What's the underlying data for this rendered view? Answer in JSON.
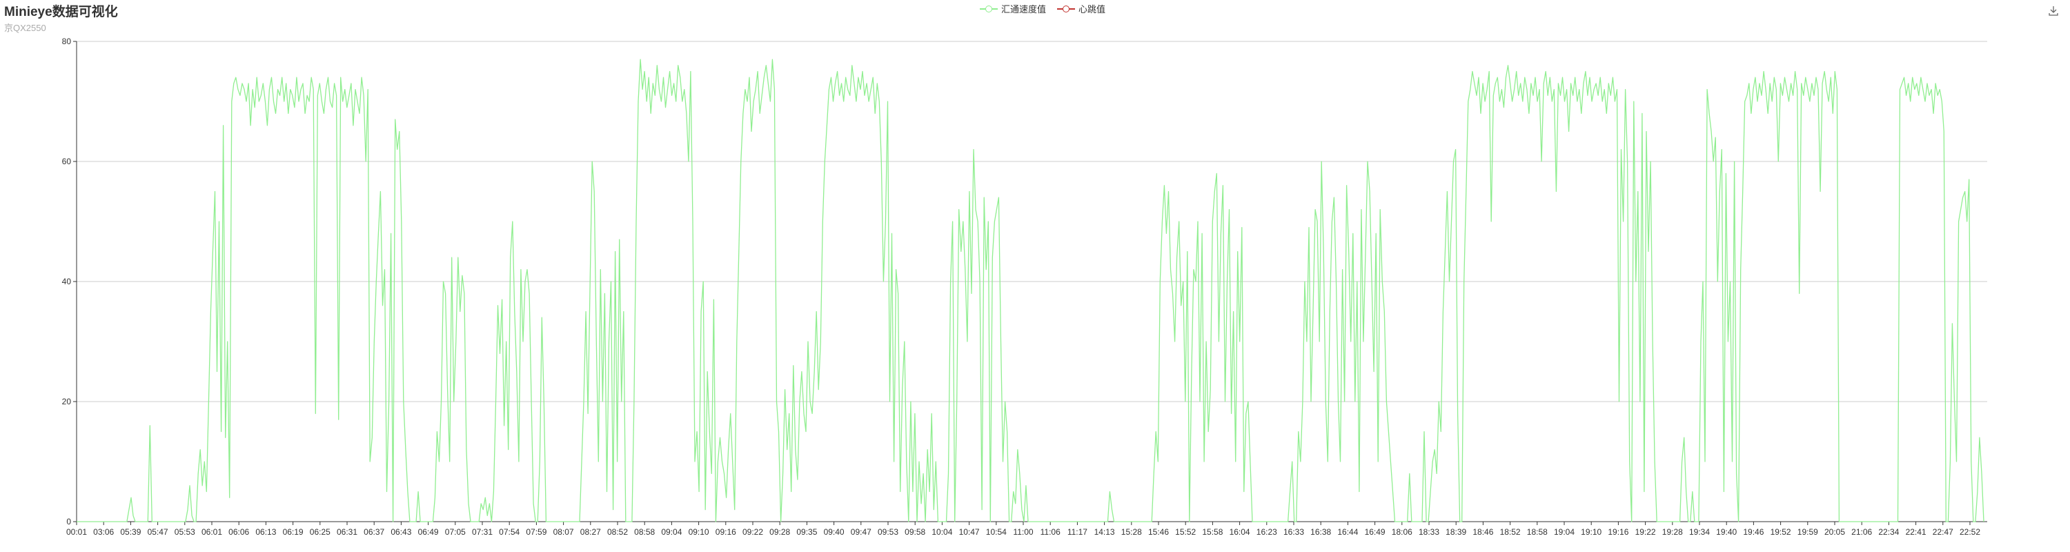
{
  "header": {
    "title": "Minieye数据可视化",
    "subtitle": "京QX2550"
  },
  "toolbar": {
    "download_icon": "download-icon"
  },
  "chart_data": {
    "type": "line",
    "title": "Minieye数据可视化",
    "subtitle": "京QX2550",
    "xlabel": "",
    "ylabel": "",
    "ylim": [
      0,
      80
    ],
    "yticks": [
      0,
      20,
      40,
      60,
      80
    ],
    "grid": true,
    "legend_position": "top-center",
    "x_tick_labels": [
      "00:01",
      "03:06",
      "05:39",
      "05:47",
      "05:53",
      "06:01",
      "06:06",
      "06:13",
      "06:19",
      "06:25",
      "06:31",
      "06:37",
      "06:43",
      "06:49",
      "07:05",
      "07:31",
      "07:54",
      "07:59",
      "08:07",
      "08:27",
      "08:52",
      "08:58",
      "09:04",
      "09:10",
      "09:16",
      "09:22",
      "09:28",
      "09:35",
      "09:40",
      "09:47",
      "09:53",
      "09:58",
      "10:04",
      "10:47",
      "10:54",
      "11:00",
      "11:06",
      "11:17",
      "14:13",
      "15:28",
      "15:46",
      "15:52",
      "15:58",
      "16:04",
      "16:23",
      "16:33",
      "16:38",
      "16:44",
      "16:49",
      "18:06",
      "18:33",
      "18:39",
      "18:46",
      "18:52",
      "18:58",
      "19:04",
      "19:10",
      "19:16",
      "19:22",
      "19:28",
      "19:34",
      "19:40",
      "19:46",
      "19:52",
      "19:59",
      "20:05",
      "21:06",
      "22:34",
      "22:41",
      "22:47",
      "22:52"
    ],
    "series": [
      {
        "name": "汇通速度值",
        "color": "#90ee90",
        "values": [
          0,
          0,
          0,
          0,
          0,
          0,
          0,
          0,
          0,
          0,
          0,
          0,
          0,
          0,
          0,
          0,
          0,
          0,
          0,
          0,
          0,
          0,
          0,
          0,
          0,
          2,
          4,
          1,
          0,
          0,
          0,
          0,
          0,
          0,
          0,
          16,
          0,
          0,
          0,
          0,
          0,
          0,
          0,
          0,
          0,
          0,
          0,
          0,
          0,
          0,
          0,
          0,
          0,
          2,
          6,
          1,
          0,
          0,
          8,
          12,
          6,
          10,
          5,
          20,
          35,
          45,
          55,
          25,
          50,
          15,
          66,
          14,
          30,
          4,
          70,
          73,
          74,
          72,
          71,
          73,
          72,
          70,
          73,
          66,
          72,
          69,
          74,
          70,
          71,
          73,
          70,
          66,
          72,
          74,
          70,
          68,
          72,
          71,
          74,
          70,
          73,
          68,
          72,
          71,
          69,
          74,
          70,
          72,
          73,
          68,
          71,
          70,
          74,
          72,
          18,
          71,
          73,
          70,
          68,
          72,
          74,
          70,
          69,
          73,
          71,
          17,
          74,
          70,
          72,
          69,
          71,
          73,
          66,
          72,
          70,
          68,
          74,
          71,
          60,
          72,
          10,
          14,
          30,
          40,
          48,
          55,
          36,
          42,
          5,
          20,
          48,
          0,
          67,
          62,
          65,
          50,
          20,
          12,
          5,
          0,
          0,
          0,
          0,
          5,
          0,
          0,
          0,
          0,
          0,
          0,
          0,
          4,
          15,
          10,
          20,
          40,
          38,
          22,
          10,
          44,
          20,
          30,
          44,
          35,
          41,
          38,
          12,
          3,
          0,
          0,
          0,
          0,
          0,
          3,
          2,
          4,
          1,
          3,
          0,
          5,
          20,
          36,
          28,
          37,
          16,
          30,
          12,
          44,
          50,
          35,
          25,
          10,
          42,
          30,
          40,
          42,
          38,
          20,
          3,
          0,
          0,
          10,
          34,
          20,
          0,
          0,
          0,
          0,
          0,
          0,
          0,
          0,
          0,
          0,
          0,
          0,
          0,
          0,
          0,
          0,
          0,
          10,
          20,
          35,
          18,
          40,
          60,
          55,
          30,
          10,
          42,
          20,
          38,
          5,
          30,
          40,
          2,
          45,
          10,
          47,
          20,
          35,
          0,
          0,
          0,
          0,
          20,
          50,
          70,
          77,
          72,
          75,
          70,
          74,
          68,
          73,
          71,
          76,
          72,
          70,
          74,
          69,
          72,
          75,
          71,
          73,
          70,
          76,
          74,
          70,
          72,
          68,
          60,
          75,
          50,
          10,
          15,
          5,
          35,
          40,
          2,
          25,
          15,
          8,
          37,
          0,
          10,
          14,
          10,
          8,
          4,
          12,
          18,
          10,
          2,
          30,
          45,
          60,
          68,
          72,
          70,
          74,
          65,
          70,
          72,
          75,
          68,
          71,
          74,
          76,
          73,
          70,
          77,
          72,
          20,
          15,
          0,
          8,
          22,
          12,
          18,
          5,
          26,
          12,
          7,
          20,
          25,
          18,
          15,
          30,
          20,
          18,
          25,
          35,
          22,
          30,
          50,
          60,
          66,
          72,
          74,
          70,
          73,
          75,
          71,
          73,
          70,
          74,
          72,
          71,
          76,
          73,
          70,
          74,
          72,
          75,
          71,
          73,
          70,
          72,
          74,
          68,
          73,
          70,
          60,
          40,
          50,
          70,
          20,
          48,
          10,
          42,
          38,
          5,
          22,
          30,
          10,
          0,
          20,
          5,
          18,
          0,
          10,
          3,
          8,
          0,
          12,
          5,
          18,
          2,
          10,
          0,
          0,
          0,
          0,
          0,
          8,
          40,
          50,
          0,
          20,
          52,
          45,
          50,
          42,
          30,
          55,
          38,
          62,
          52,
          50,
          40,
          2,
          54,
          42,
          50,
          0,
          44,
          50,
          52,
          54,
          30,
          10,
          20,
          15,
          0,
          0,
          5,
          3,
          12,
          8,
          2,
          0,
          6,
          0,
          0,
          0,
          0,
          0,
          0,
          0,
          0,
          0,
          0,
          0,
          0,
          0,
          0,
          0,
          0,
          0,
          0,
          0,
          0,
          0,
          0,
          0,
          0,
          0,
          0,
          0,
          0,
          0,
          0,
          0,
          0,
          0,
          0,
          0,
          0,
          0,
          0,
          0,
          5,
          2,
          0,
          0,
          0,
          0,
          0,
          0,
          0,
          0,
          0,
          0,
          0,
          0,
          0,
          0,
          0,
          0,
          0,
          0,
          0,
          8,
          15,
          10,
          40,
          50,
          56,
          48,
          55,
          42,
          38,
          30,
          44,
          50,
          36,
          40,
          20,
          45,
          0,
          25,
          42,
          40,
          50,
          20,
          48,
          10,
          30,
          15,
          22,
          50,
          55,
          58,
          30,
          48,
          56,
          20,
          40,
          52,
          18,
          35,
          10,
          45,
          30,
          49,
          5,
          18,
          20,
          10,
          0,
          0,
          0,
          0,
          0,
          0,
          0,
          0,
          0,
          0,
          0,
          0,
          0,
          0,
          0,
          0,
          0,
          0,
          5,
          10,
          0,
          0,
          15,
          10,
          20,
          40,
          30,
          49,
          20,
          35,
          52,
          50,
          30,
          60,
          45,
          20,
          10,
          35,
          50,
          54,
          40,
          20,
          10,
          42,
          20,
          56,
          45,
          30,
          48,
          20,
          40,
          5,
          52,
          30,
          45,
          60,
          55,
          40,
          25,
          48,
          10,
          52,
          40,
          35,
          20,
          15,
          10,
          5,
          0,
          0,
          0,
          0,
          0,
          0,
          0,
          8,
          0,
          0,
          0,
          0,
          0,
          0,
          15,
          0,
          0,
          5,
          10,
          12,
          8,
          20,
          15,
          35,
          45,
          55,
          40,
          50,
          60,
          62,
          18,
          0,
          0,
          40,
          55,
          70,
          72,
          75,
          73,
          71,
          74,
          68,
          73,
          70,
          72,
          75,
          50,
          71,
          73,
          74,
          70,
          72,
          69,
          74,
          76,
          73,
          70,
          72,
          75,
          71,
          73,
          70,
          74,
          72,
          68,
          73,
          71,
          74,
          70,
          72,
          60,
          73,
          75,
          71,
          74,
          70,
          72,
          55,
          73,
          71,
          74,
          70,
          72,
          65,
          73,
          71,
          74,
          70,
          72,
          68,
          73,
          75,
          71,
          74,
          70,
          72,
          73,
          71,
          74,
          70,
          72,
          68,
          73,
          71,
          74,
          70,
          72,
          20,
          62,
          50,
          72,
          60,
          10,
          0,
          70,
          40,
          55,
          20,
          68,
          5,
          65,
          45,
          60,
          30,
          10,
          0,
          0,
          0,
          0,
          0,
          0,
          0,
          0,
          0,
          0,
          0,
          0,
          10,
          14,
          5,
          0,
          0,
          5,
          0,
          0,
          0,
          30,
          40,
          10,
          72,
          68,
          65,
          60,
          64,
          40,
          55,
          62,
          5,
          58,
          30,
          40,
          10,
          60,
          8,
          0,
          42,
          55,
          70,
          71,
          73,
          68,
          72,
          74,
          70,
          73,
          71,
          75,
          72,
          68,
          73,
          70,
          74,
          72,
          60,
          73,
          71,
          74,
          72,
          70,
          73,
          71,
          75,
          72,
          38,
          73,
          71,
          74,
          72,
          70,
          73,
          71,
          74,
          72,
          55,
          73,
          75,
          72,
          70,
          74,
          68,
          75,
          72,
          0,
          0,
          0,
          0,
          0,
          0,
          0,
          0,
          0,
          0,
          0,
          0,
          0,
          0,
          0,
          0,
          0,
          0,
          0,
          0,
          0,
          0,
          0,
          0,
          0,
          0,
          0,
          0,
          0,
          72,
          73,
          74,
          71,
          73,
          70,
          74,
          72,
          73,
          71,
          74,
          72,
          70,
          73,
          71,
          72,
          68,
          73,
          71,
          72,
          70,
          65,
          0,
          0,
          10,
          33,
          20,
          10,
          50,
          52,
          54,
          55,
          50,
          57,
          10,
          0,
          0,
          5,
          14,
          8,
          0
        ]
      },
      {
        "name": "心跳值",
        "color": "#c23531",
        "values": []
      }
    ]
  }
}
